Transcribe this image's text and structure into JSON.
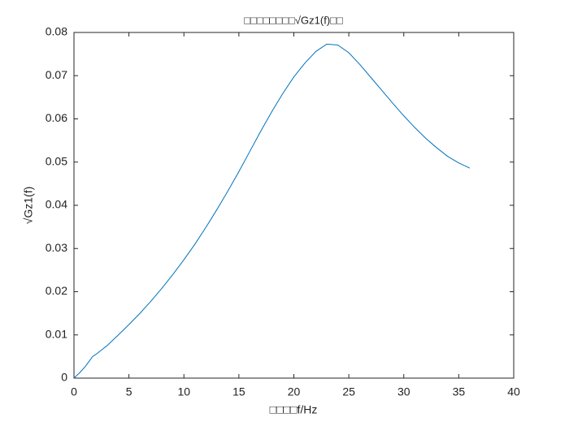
{
  "chart_data": {
    "type": "line",
    "title": "□□□□□□□□√Gz1(f)□□",
    "x_label": "□□□□f/Hz",
    "y_label": "√Gz1(f)",
    "x": [
      0,
      0.5,
      1,
      1.5,
      1.7,
      2,
      3,
      4,
      5,
      6,
      7,
      8,
      9,
      10,
      11,
      12,
      13,
      14,
      15,
      16,
      17,
      18,
      19,
      20,
      21,
      22,
      23,
      24,
      25,
      26,
      27,
      28,
      29,
      30,
      31,
      32,
      33,
      34,
      35,
      36
    ],
    "series": [
      {
        "name": "√Gz1(f)",
        "color": "#0072bd",
        "values": [
          0,
          0.0012,
          0.0026,
          0.0043,
          0.005,
          0.0055,
          0.0075,
          0.0099,
          0.0124,
          0.015,
          0.0178,
          0.0208,
          0.024,
          0.0274,
          0.031,
          0.0349,
          0.039,
          0.0433,
          0.0478,
          0.0525,
          0.0572,
          0.0617,
          0.0659,
          0.0697,
          0.0729,
          0.0756,
          0.0773,
          0.0771,
          0.0753,
          0.0726,
          0.0696,
          0.0666,
          0.0636,
          0.0607,
          0.058,
          0.0555,
          0.0533,
          0.0513,
          0.0498,
          0.0486
        ]
      }
    ],
    "xlim": [
      0,
      40
    ],
    "xticks": [
      0,
      5,
      10,
      15,
      20,
      25,
      30,
      35,
      40
    ],
    "ylim": [
      0,
      0.08
    ],
    "yticks": [
      0,
      0.01,
      0.02,
      0.03,
      0.04,
      0.05,
      0.06,
      0.07,
      0.08
    ],
    "grid": false
  }
}
